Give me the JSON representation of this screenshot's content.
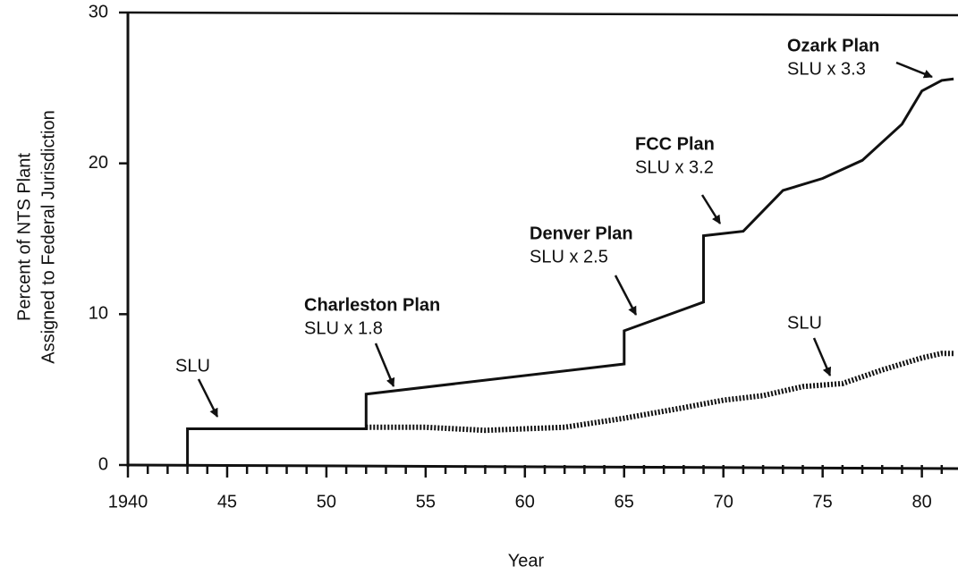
{
  "chart_data": {
    "type": "line",
    "xlabel": "Year",
    "ylabel": [
      "Percent of NTS Plant",
      "Assigned to Federal Jurisdiction"
    ],
    "xlim": [
      1940,
      1982
    ],
    "ylim": [
      0,
      30
    ],
    "xticks": [
      {
        "value": 1940,
        "label": "1940"
      },
      {
        "value": 1945,
        "label": "45"
      },
      {
        "value": 1950,
        "label": "50"
      },
      {
        "value": 1955,
        "label": "55"
      },
      {
        "value": 1960,
        "label": "60"
      },
      {
        "value": 1965,
        "label": "65"
      },
      {
        "value": 1970,
        "label": "70"
      },
      {
        "value": 1975,
        "label": "75"
      },
      {
        "value": 1980,
        "label": "80"
      }
    ],
    "xminor_ticks": [
      1941,
      1942,
      1943,
      1944,
      1946,
      1947,
      1948,
      1949,
      1951,
      1952,
      1953,
      1954,
      1956,
      1957,
      1958,
      1959,
      1961,
      1962,
      1963,
      1964,
      1966,
      1967,
      1968,
      1969,
      1971,
      1972,
      1973,
      1974,
      1976,
      1977,
      1978,
      1979,
      1981
    ],
    "yticks": [
      0,
      10,
      20,
      30
    ],
    "series": [
      {
        "color": "#111111",
        "style": "solid",
        "x": [
          1943,
          1943,
          1952,
          1952,
          1965,
          1965,
          1969,
          1969,
          1971,
          1973,
          1975,
          1977,
          1979,
          1980,
          1981,
          1981.6
        ],
        "values": [
          0,
          2.4,
          2.4,
          4.7,
          6.7,
          8.9,
          10.8,
          15.2,
          15.5,
          18.2,
          19.0,
          20.2,
          22.6,
          24.8,
          25.5,
          25.6
        ]
      },
      {
        "color": "#111111",
        "style": "dotted",
        "x": [
          1952,
          1955,
          1958,
          1962,
          1965,
          1968,
          1970,
          1972,
          1974,
          1976,
          1978,
          1980,
          1981,
          1981.6
        ],
        "values": [
          2.5,
          2.5,
          2.3,
          2.5,
          3.1,
          3.8,
          4.3,
          4.6,
          5.2,
          5.4,
          6.3,
          7.1,
          7.4,
          7.4
        ]
      }
    ],
    "annotations": [
      {
        "text": "SLU"
      },
      {
        "title": "Charleston Plan",
        "text": "SLU x 1.8"
      },
      {
        "title": "Denver Plan",
        "text": "SLU x 2.5"
      },
      {
        "title": "FCC Plan",
        "text": "SLU x 3.2"
      },
      {
        "title": "Ozark Plan",
        "text": "SLU x 3.3"
      },
      {
        "text": "SLU"
      }
    ]
  }
}
